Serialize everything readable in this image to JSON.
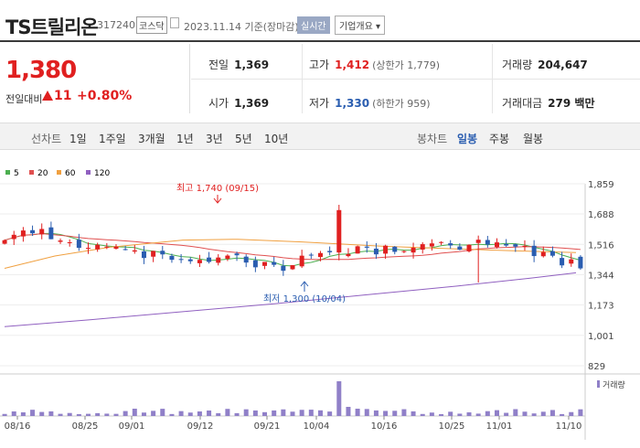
{
  "header": {
    "name": "TS트릴리온",
    "code": "317240",
    "market": "코스닥",
    "date": "2023.11.14 기준(장마감)",
    "realtime": "실시간",
    "company_info": "기업개요 ▾"
  },
  "price": {
    "current": "1,380",
    "change_label": "전일대비",
    "change": "11",
    "change_pct": "+0.80%"
  },
  "stats": {
    "prev_label": "전일",
    "prev": "1,369",
    "high_label": "고가",
    "high": "1,412",
    "upper_limit": "(상한가 1,779)",
    "volume_label": "거래량",
    "volume": "204,647",
    "open_label": "시가",
    "open": "1,369",
    "low_label": "저가",
    "low": "1,330",
    "lower_limit": "(하한가 959)",
    "amount_label": "거래대금",
    "amount": "279 백만"
  },
  "period_tabs": {
    "label": "선차트",
    "items": [
      "1일",
      "1주일",
      "3개월",
      "1년",
      "3년",
      "5년",
      "10년"
    ]
  },
  "candle_tabs": {
    "label": "봉차트",
    "items": [
      "일봉",
      "주봉",
      "월봉"
    ],
    "active": "일봉"
  },
  "colors": {
    "up": "#e02020",
    "down": "#2a5db0",
    "ma5": "#4caf50",
    "ma20": "#e05050",
    "ma60": "#f0a040",
    "ma120": "#9060c0"
  },
  "chart_data": {
    "type": "candlestick",
    "legend": [
      "5",
      "20",
      "60",
      "120"
    ],
    "y_ticks": [
      "1,859",
      "1,688",
      "1,516",
      "1,344",
      "1,173",
      "1,001",
      "829"
    ],
    "y_range": [
      829,
      1859
    ],
    "x_ticks": [
      "08/16",
      "08/25",
      "09/01",
      "09/12",
      "09/21",
      "10/04",
      "10/16",
      "10/25",
      "11/01",
      "11/10"
    ],
    "high_annotation": "최고 1,740 (09/15)",
    "low_annotation": "최저 1,300 (10/04)",
    "volume_label": "거래량"
  }
}
